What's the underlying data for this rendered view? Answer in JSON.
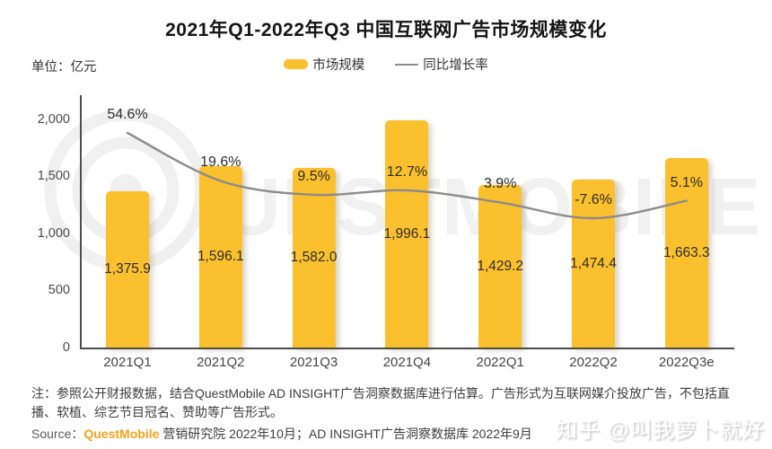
{
  "title": "2021年Q1-2022年Q3 中国互联网广告市场规模变化",
  "unit_label": "单位：亿元",
  "legend": {
    "bar_label": "市场规模",
    "line_label": "同比增长率"
  },
  "colors": {
    "bar": "#FBC02D",
    "line": "#8C8C8C",
    "brand_orange": "#F7A21B",
    "watermark_gray": "#F1F1F1"
  },
  "chart_data": {
    "type": "bar",
    "title": "2021年Q1-2022年Q3 中国互联网广告市场规模变化",
    "xlabel": "",
    "ylabel": "亿元",
    "categories": [
      "2021Q1",
      "2021Q2",
      "2021Q3",
      "2021Q4",
      "2022Q1",
      "2022Q2",
      "2022Q3e"
    ],
    "series": [
      {
        "name": "市场规模",
        "type": "bar",
        "unit": "亿元",
        "values": [
          1375.9,
          1596.1,
          1582.0,
          1996.1,
          1429.2,
          1474.4,
          1663.3
        ],
        "labels": [
          "1,375.9",
          "1,596.1",
          "1,582.0",
          "1,996.1",
          "1,429.2",
          "1,474.4",
          "1,663.3"
        ]
      },
      {
        "name": "同比增长率",
        "type": "line",
        "unit": "%",
        "values": [
          54.6,
          19.6,
          9.5,
          12.7,
          3.9,
          -7.6,
          5.1
        ],
        "labels": [
          "54.6%",
          "19.6%",
          "9.5%",
          "12.7%",
          "3.9%",
          "-7.6%",
          "5.1%"
        ]
      }
    ],
    "y_ticks": {
      "values": [
        0,
        500,
        1000,
        1500,
        2000
      ],
      "labels": [
        "0",
        "500",
        "1,000",
        "1,500",
        "2,000"
      ]
    },
    "ylim": [
      0,
      2000
    ],
    "grid": false,
    "legend_position": "top-center"
  },
  "watermark": {
    "logo_text": "UESTMOBILE",
    "zhihu": "知乎 @叫我萝卜就好"
  },
  "footnote": "注：参照公开财报数据，结合QuestMobile AD INSIGHT广告洞察数据库进行估算。广告形式为互联网媒介投放广告，不包括直播、软植、综艺节目冠名、赞助等广告形式。",
  "source": {
    "prefix": "Source：",
    "brand": "QuestMobile",
    "rest": " 营销研究院 2022年10月；AD INSIGHT广告洞察数据库 2022年9月"
  }
}
